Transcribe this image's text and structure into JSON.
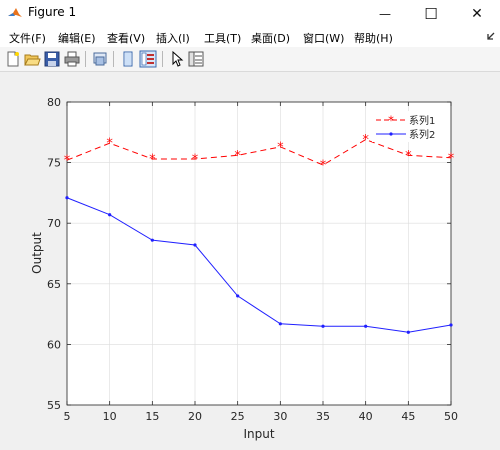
{
  "window": {
    "title": "Figure 1",
    "controls": {
      "minimize": "—",
      "maximize": "☐",
      "close": "✕"
    }
  },
  "menu": {
    "items": [
      "文件(F)",
      "编辑(E)",
      "查看(V)",
      "插入(I)",
      "工具(T)",
      "桌面(D)",
      "窗口(W)",
      "帮助(H)"
    ]
  },
  "toolbar": {
    "icons": [
      "new-figure-icon",
      "open-file-icon",
      "save-icon",
      "print-icon",
      "link-plot-icon",
      "hide-plot-tools-icon",
      "show-plot-tools-icon",
      "edit-plot-arrow-icon",
      "property-inspector-icon"
    ]
  },
  "colors": {
    "series1": "#ff0000",
    "series2": "#2020ff",
    "axes_bg": "#ffffff",
    "grid": "#dcdcdc"
  },
  "chart_data": {
    "type": "line",
    "title": "",
    "xlabel": "Input",
    "ylabel": "Output",
    "x": [
      5,
      10,
      15,
      20,
      25,
      30,
      35,
      40,
      45,
      50
    ],
    "xlim": [
      5,
      50
    ],
    "ylim": [
      55,
      80
    ],
    "xticks": [
      5,
      10,
      15,
      20,
      25,
      30,
      35,
      40,
      45,
      50
    ],
    "yticks": [
      55,
      60,
      65,
      70,
      75,
      80
    ],
    "grid": true,
    "legend_position": "top-right",
    "series": [
      {
        "name": "系列1",
        "style": "dashed-star",
        "values": [
          75.2,
          76.6,
          75.3,
          75.3,
          75.6,
          76.3,
          74.8,
          76.9,
          75.6,
          75.4
        ]
      },
      {
        "name": "系列2",
        "style": "solid-dot",
        "values": [
          72.1,
          70.7,
          68.6,
          68.2,
          64.0,
          61.7,
          61.5,
          61.5,
          61.0,
          61.6
        ]
      }
    ]
  }
}
